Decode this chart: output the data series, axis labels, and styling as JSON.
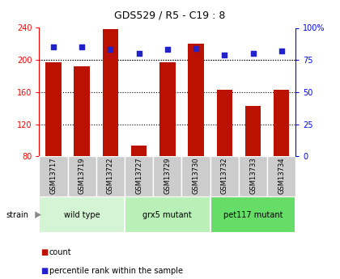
{
  "title": "GDS529 / R5 - C19 : 8",
  "samples": [
    "GSM13717",
    "GSM13719",
    "GSM13722",
    "GSM13727",
    "GSM13729",
    "GSM13730",
    "GSM13732",
    "GSM13733",
    "GSM13734"
  ],
  "counts": [
    197,
    192,
    238,
    93,
    197,
    220,
    163,
    143,
    163
  ],
  "percentiles": [
    85,
    85,
    83,
    80,
    83,
    84,
    79,
    80,
    82
  ],
  "groups": [
    {
      "label": "wild type",
      "start": 0,
      "end": 3,
      "color": "#d4f5d4"
    },
    {
      "label": "grx5 mutant",
      "start": 3,
      "end": 6,
      "color": "#b8f0b8"
    },
    {
      "label": "pet117 mutant",
      "start": 6,
      "end": 9,
      "color": "#66dd66"
    }
  ],
  "strain_label": "strain",
  "bar_color": "#bb1100",
  "dot_color": "#2222cc",
  "ymin": 80,
  "ymax": 240,
  "yticks_left": [
    80,
    120,
    160,
    200,
    240
  ],
  "yticks_right": [
    0,
    25,
    50,
    75,
    100
  ],
  "pct_min": 0,
  "pct_max": 100,
  "grid_values": [
    120,
    160,
    200
  ],
  "bar_width": 0.55,
  "sample_box_color": "#cccccc",
  "legend_count_label": "count",
  "legend_pct_label": "percentile rank within the sample"
}
